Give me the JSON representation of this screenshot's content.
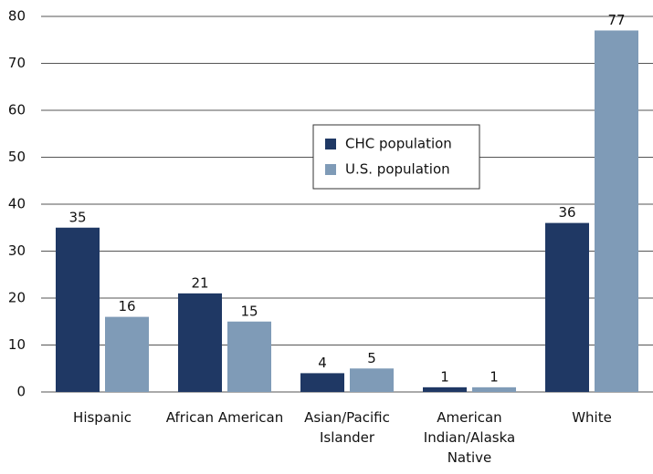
{
  "chart_data": {
    "type": "bar",
    "categories": [
      "Hispanic",
      "African American",
      "Asian/Pacific Islander",
      "American Indian/Alaska Native",
      "White"
    ],
    "series": [
      {
        "name": "CHC population",
        "color": "#1f3864",
        "values": [
          35,
          21,
          4,
          1,
          36
        ]
      },
      {
        "name": "U.S. population",
        "color": "#7f9bb7",
        "values": [
          16,
          15,
          5,
          1,
          77
        ]
      }
    ],
    "ylim": [
      0,
      80
    ],
    "yticks": [
      0,
      10,
      20,
      30,
      40,
      50,
      60,
      70,
      80
    ],
    "grid": true
  }
}
